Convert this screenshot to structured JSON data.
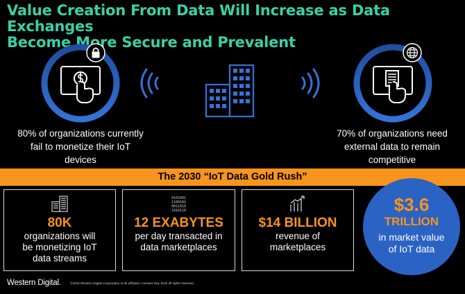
{
  "title": {
    "line1": "Value Creation From Data Will Increase as Data Exchanges",
    "line2": "Become More Secure and Prevalent"
  },
  "left_stat": {
    "line1": "80% of organizations currently",
    "line2": "fail to monetize their IoT",
    "line3": "devices"
  },
  "right_stat": {
    "line1": "70% of organizations need",
    "line2": "external data to remain",
    "line3": "competitive"
  },
  "banner": "The 2030 “IoT Data Gold Rush”",
  "boxes": [
    {
      "value": "80K",
      "line1": "organizations will",
      "line2": "be monetizing IoT",
      "line3": "data streams"
    },
    {
      "value": "12 EXABYTES",
      "line1": "per day transacted in",
      "line2": "data marketplaces"
    },
    {
      "value": "$14 BILLION",
      "line1": "revenue of",
      "line2": "marketplaces"
    }
  ],
  "highlight": {
    "value": "$3.6",
    "unit": "TRILLION",
    "line1": "in market value",
    "line2": "of IoT data"
  },
  "footer": {
    "brand": "Western Digital.",
    "copyright": "©2018 Western Digital Corporation or its affiliates. Investor Day 2018 all rights reserved."
  },
  "colors": {
    "title": "#3ad0a8",
    "accent": "#f7941d",
    "ring": "#2b63c5",
    "background": "#000000"
  },
  "icons": [
    "lock-icon",
    "tablet-dollar-icon",
    "signal-waves-icon",
    "building-icon",
    "globe-icon",
    "tablet-document-icon",
    "data-center-icon",
    "binary-data-icon",
    "growth-chart-icon"
  ]
}
